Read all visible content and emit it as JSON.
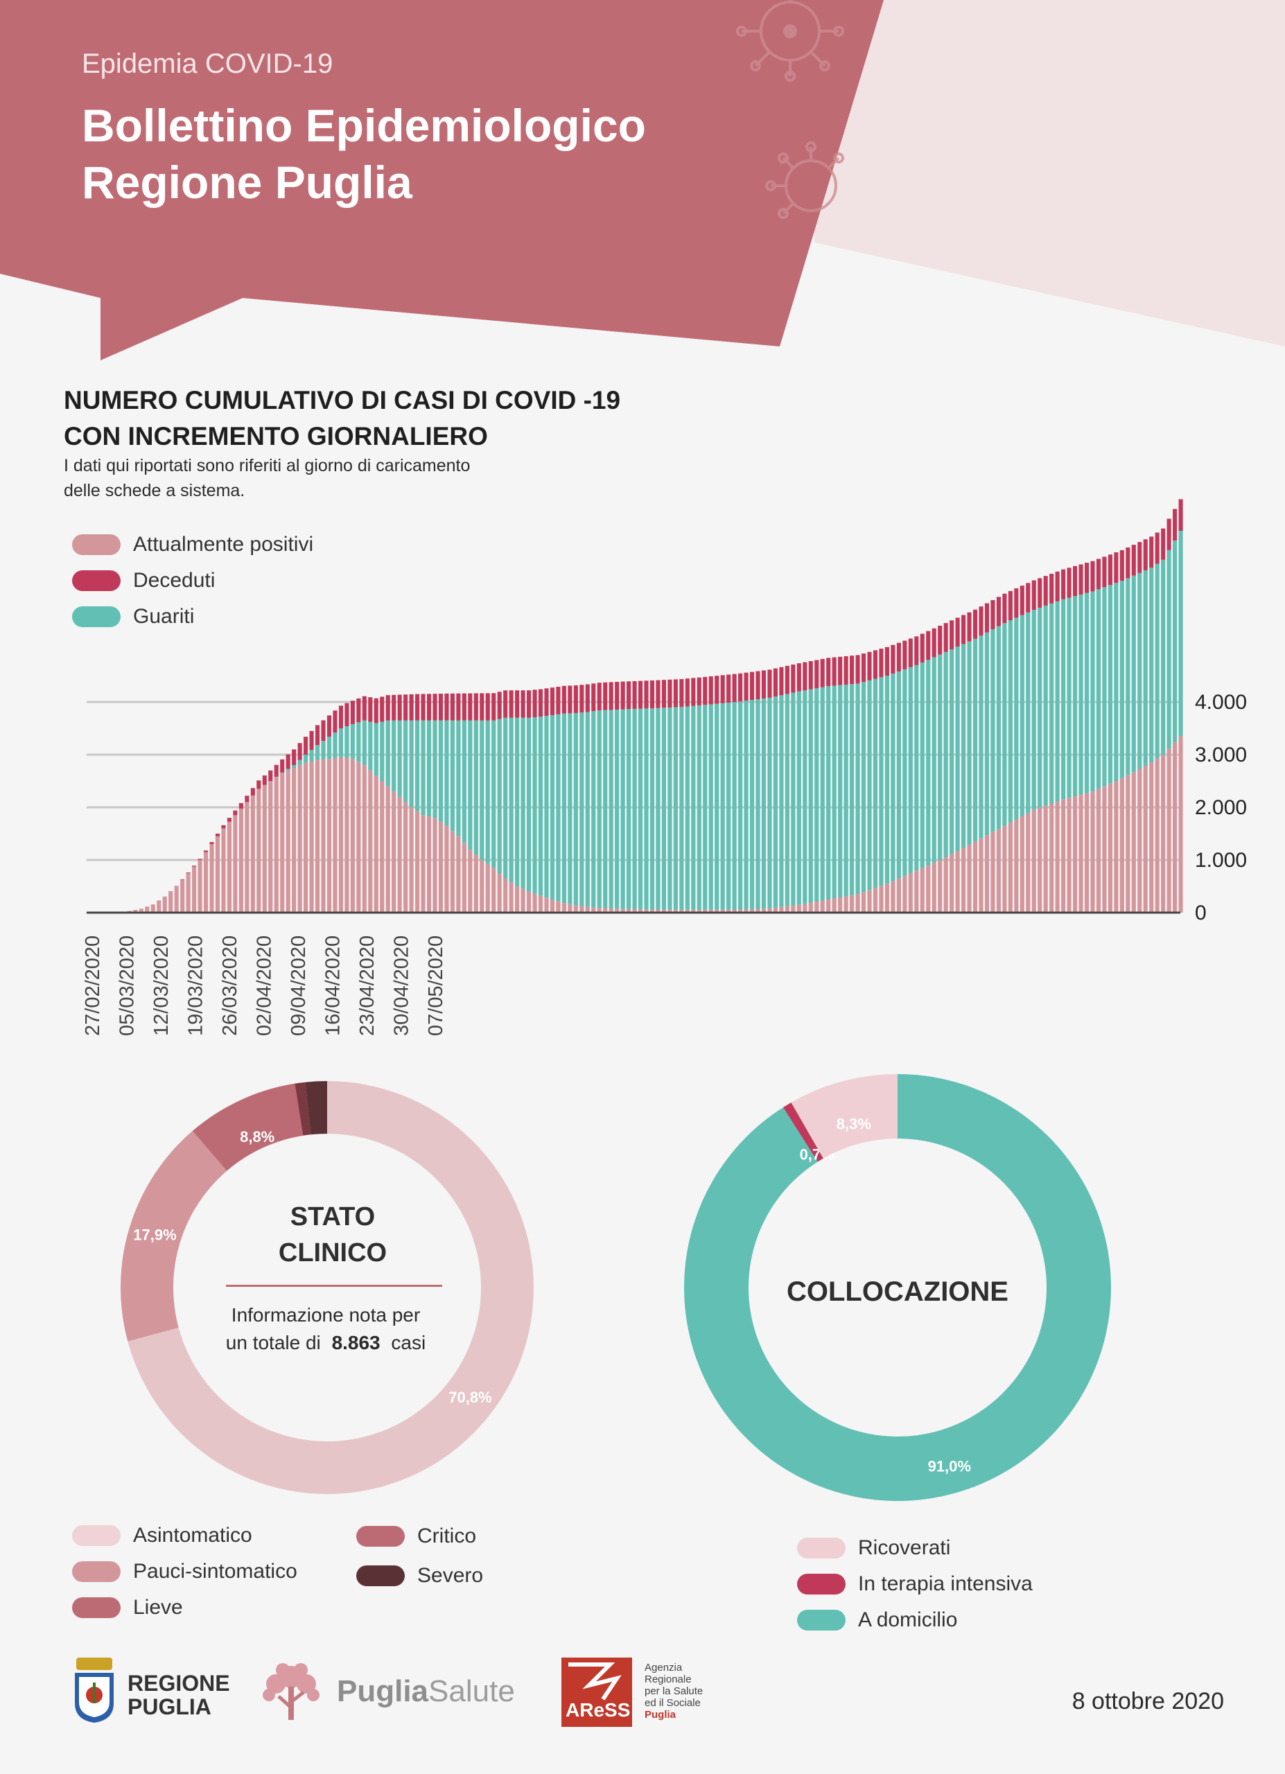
{
  "header": {
    "kicker": "Epidemia COVID-19",
    "title_line1": "Bollettino Epidemiologico",
    "title_line2": "Regione Puglia"
  },
  "colors": {
    "header_bg": "#bf6b74",
    "positivi": "#d3969b",
    "deceduti": "#c0395a",
    "guariti": "#61bfb3",
    "asintomatico": "#e6c5c8",
    "pauci": "#d3969b",
    "lieve": "#bc6a73",
    "critico": "#7a3841",
    "severo": "#5a3235",
    "ricoverati": "#efcfd3",
    "terapia": "#c0395a",
    "domicilio": "#61bfb3"
  },
  "chart_section": {
    "title_line1": "NUMERO CUMULATIVO DI CASI DI COVID -19",
    "title_line2": "CON INCREMENTO GIORNALIERO",
    "note_line1": "I dati qui riportati sono riferiti al giorno di caricamento",
    "note_line2": "delle schede a sistema.",
    "legend": [
      "Attualmente positivi",
      "Deceduti",
      "Guariti"
    ]
  },
  "chart_data": [
    {
      "type": "bar",
      "stacked": true,
      "x_tick_labels": [
        "27/02/2020",
        "05/03/2020",
        "12/03/2020",
        "19/03/2020",
        "26/03/2020",
        "02/04/2020",
        "09/04/2020",
        "16/04/2020",
        "23/04/2020",
        "30/04/2020",
        "07/05/2020"
      ],
      "x_start": "27/02/2020",
      "y_ticks": [
        "0",
        "1.000",
        "2.000",
        "3.000",
        "4.000"
      ],
      "ylim": [
        0,
        8800
      ],
      "grid": true,
      "legend_position": "top-left",
      "series": [
        {
          "name": "Attualmente positivi",
          "anchors": [
            [
              0,
              0
            ],
            [
              4,
              2
            ],
            [
              6,
              30
            ],
            [
              8,
              70
            ],
            [
              10,
              150
            ],
            [
              12,
              300
            ],
            [
              14,
              500
            ],
            [
              16,
              750
            ],
            [
              18,
              1000
            ],
            [
              20,
              1300
            ],
            [
              22,
              1600
            ],
            [
              24,
              1850
            ],
            [
              26,
              2100
            ],
            [
              28,
              2350
            ],
            [
              30,
              2500
            ],
            [
              32,
              2650
            ],
            [
              34,
              2750
            ],
            [
              36,
              2850
            ],
            [
              38,
              2900
            ],
            [
              40,
              2920
            ],
            [
              42,
              2950
            ],
            [
              44,
              2930
            ],
            [
              46,
              2800
            ],
            [
              48,
              2600
            ],
            [
              50,
              2400
            ],
            [
              52,
              2200
            ],
            [
              54,
              2000
            ],
            [
              56,
              1850
            ],
            [
              58,
              1800
            ],
            [
              60,
              1650
            ],
            [
              62,
              1450
            ],
            [
              64,
              1200
            ],
            [
              66,
              1000
            ],
            [
              68,
              850
            ],
            [
              70,
              650
            ],
            [
              72,
              500
            ],
            [
              74,
              400
            ],
            [
              76,
              320
            ],
            [
              78,
              250
            ],
            [
              80,
              180
            ],
            [
              82,
              140
            ],
            [
              84,
              110
            ],
            [
              86,
              90
            ],
            [
              88,
              80
            ],
            [
              90,
              70
            ],
            [
              95,
              60
            ],
            [
              100,
              55
            ],
            [
              105,
              55
            ],
            [
              110,
              60
            ],
            [
              115,
              80
            ],
            [
              120,
              150
            ],
            [
              125,
              250
            ],
            [
              130,
              350
            ],
            [
              135,
              550
            ],
            [
              140,
              800
            ],
            [
              145,
              1050
            ],
            [
              150,
              1350
            ],
            [
              155,
              1650
            ],
            [
              160,
              1950
            ],
            [
              165,
              2150
            ],
            [
              170,
              2300
            ],
            [
              175,
              2550
            ],
            [
              180,
              2850
            ],
            [
              182,
              3000
            ],
            [
              185,
              3350
            ]
          ]
        },
        {
          "name": "Guariti",
          "anchors": [
            [
              0,
              0
            ],
            [
              30,
              0
            ],
            [
              32,
              10
            ],
            [
              34,
              50
            ],
            [
              36,
              150
            ],
            [
              38,
              280
            ],
            [
              40,
              420
            ],
            [
              42,
              550
            ],
            [
              44,
              650
            ],
            [
              46,
              850
            ],
            [
              48,
              1000
            ],
            [
              50,
              1250
            ],
            [
              52,
              1450
            ],
            [
              54,
              1650
            ],
            [
              56,
              1800
            ],
            [
              58,
              1850
            ],
            [
              60,
              2000
            ],
            [
              62,
              2200
            ],
            [
              64,
              2450
            ],
            [
              66,
              2650
            ],
            [
              68,
              2800
            ],
            [
              70,
              3050
            ],
            [
              72,
              3200
            ],
            [
              74,
              3300
            ],
            [
              76,
              3400
            ],
            [
              78,
              3500
            ],
            [
              80,
              3600
            ],
            [
              82,
              3650
            ],
            [
              84,
              3700
            ],
            [
              86,
              3750
            ],
            [
              88,
              3770
            ],
            [
              90,
              3790
            ],
            [
              95,
              3820
            ],
            [
              100,
              3850
            ],
            [
              105,
              3900
            ],
            [
              110,
              3950
            ],
            [
              115,
              4000
            ],
            [
              120,
              4050
            ],
            [
              125,
              4050
            ],
            [
              130,
              4000
            ],
            [
              135,
              3950
            ],
            [
              140,
              3900
            ],
            [
              145,
              3900
            ],
            [
              150,
              3850
            ],
            [
              155,
              3850
            ],
            [
              160,
              3800
            ],
            [
              165,
              3800
            ],
            [
              170,
              3800
            ],
            [
              175,
              3750
            ],
            [
              180,
              3700
            ],
            [
              182,
              3700
            ],
            [
              185,
              3900
            ]
          ]
        },
        {
          "name": "Deceduti",
          "anchors": [
            [
              0,
              0
            ],
            [
              14,
              5
            ],
            [
              18,
              20
            ],
            [
              22,
              60
            ],
            [
              26,
              120
            ],
            [
              30,
              200
            ],
            [
              34,
              300
            ],
            [
              38,
              380
            ],
            [
              42,
              430
            ],
            [
              46,
              460
            ],
            [
              50,
              480
            ],
            [
              55,
              500
            ],
            [
              60,
              510
            ],
            [
              70,
              520
            ],
            [
              80,
              525
            ],
            [
              100,
              530
            ],
            [
              120,
              535
            ],
            [
              140,
              545
            ],
            [
              160,
              560
            ],
            [
              170,
              575
            ],
            [
              180,
              590
            ],
            [
              185,
              600
            ]
          ]
        }
      ],
      "x_count": 186
    },
    {
      "type": "pie",
      "title_line1": "STATO",
      "title_line2": "CLINICO",
      "info_line1": "Informazione nota per",
      "info_prefix": "un totale di",
      "total": "8.863",
      "info_suffix": "casi",
      "slices": [
        {
          "name": "Asintomatico",
          "value": 70.8,
          "label": "70,8%"
        },
        {
          "name": "Pauci-sintomatico",
          "value": 17.9,
          "label": "17,9%"
        },
        {
          "name": "Lieve",
          "value": 8.8,
          "label": "8,8%"
        },
        {
          "name": "Critico",
          "value": 0.8,
          "label": ""
        },
        {
          "name": "Severo",
          "value": 1.7,
          "label": ""
        }
      ],
      "legend": [
        "Asintomatico",
        "Pauci-sintomatico",
        "Lieve",
        "Critico",
        "Severo"
      ]
    },
    {
      "type": "pie",
      "title": "COLLOCAZIONE",
      "slices": [
        {
          "name": "A domicilio",
          "value": 91.0,
          "label": "91,0%"
        },
        {
          "name": "In terapia intensiva",
          "value": 0.7,
          "label": "0,7%"
        },
        {
          "name": "Ricoverati",
          "value": 8.3,
          "label": "8,3%"
        }
      ],
      "legend": [
        "Ricoverati",
        "In terapia intensiva",
        "A domicilio"
      ]
    }
  ],
  "footer": {
    "logo1_line1": "REGIONE",
    "logo1_line2": "PUGLIA",
    "logo2_a": "Puglia",
    "logo2_b": "Salute",
    "logo3_mark": "AReSS",
    "logo3_l1": "Agenzia",
    "logo3_l2": "Regionale",
    "logo3_l3": "per la Salute",
    "logo3_l4": "ed il Sociale",
    "logo3_l5": "Puglia",
    "date": "8 ottobre 2020"
  }
}
